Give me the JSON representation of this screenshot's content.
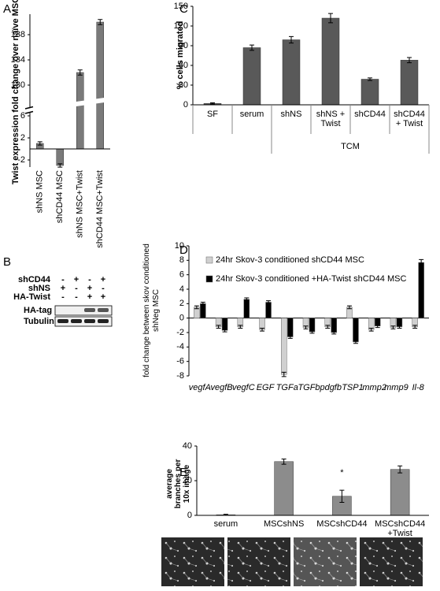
{
  "chart_data": [
    {
      "type": "bar",
      "panel": "A",
      "y_label": "Twist expression fold change over naïve MSC",
      "categories": [
        "shNS MSC",
        "shCD44  MSC",
        "shNS MSC+Twist",
        "shCD44 MSC+Twist"
      ],
      "values": [
        1,
        -3,
        132,
        140
      ],
      "errors": [
        0.3,
        0.3,
        0.4,
        0.4
      ],
      "color": "#7a7a7a",
      "ylim": [
        -3,
        141
      ],
      "axis_break": [
        7,
        128
      ],
      "yticks": [
        -2,
        2,
        6,
        130,
        134,
        138
      ]
    },
    {
      "type": "bar",
      "panel": "C",
      "y_label": "% cells migrated",
      "categories": [
        "SF",
        "serum",
        "shNS",
        "shNS +\nTwist",
        "shCD44",
        "shCD44\n+ Twist"
      ],
      "values": [
        2,
        87,
        99,
        132,
        39,
        68
      ],
      "errors": [
        1,
        4,
        5,
        7,
        2,
        4
      ],
      "color": "#595959",
      "ylim": [
        0,
        150
      ],
      "yticks": [
        0,
        30,
        60,
        90,
        120,
        150
      ],
      "group": {
        "label": "TCM",
        "from": "shNS",
        "to": "shCD44\n+ Twist"
      }
    },
    {
      "type": "grouped_bar",
      "panel": "D",
      "y_label": "fold change between skov conditioned\nshNeg MSC",
      "categories": [
        "vegfA",
        "vegfB",
        "vegfC",
        "EGF",
        "TGFa",
        "TGFb",
        "pdgfb",
        "TSP1",
        "mmp2",
        "mmp9",
        "Il-8"
      ],
      "series": [
        {
          "name": "24hr Skov-3 conditioned shCD44 MSC",
          "color": "#d0d0d0",
          "values": [
            1.5,
            -1.2,
            -1.2,
            -1.6,
            -7.8,
            -1.3,
            -1.2,
            1.5,
            -1.6,
            -1.3,
            -1.2
          ],
          "errors": [
            0.2,
            0.2,
            0.2,
            0.2,
            0.3,
            0.2,
            0.2,
            0.2,
            0.2,
            0.2,
            0.2
          ]
        },
        {
          "name": "24hr Skov-3 conditioned  +HA-Twist shCD44 MSC",
          "color": "#000000",
          "values": [
            2.0,
            -1.7,
            2.6,
            2.2,
            -2.6,
            -1.9,
            -2.0,
            -3.3,
            -1.1,
            -1.2,
            7.7
          ],
          "errors": [
            0.2,
            0.2,
            0.2,
            0.2,
            0.2,
            0.2,
            0.2,
            0.2,
            0.2,
            0.2,
            0.4
          ]
        }
      ],
      "ylim": [
        -8,
        10
      ],
      "yticks": [
        -8,
        -6,
        -4,
        -2,
        0,
        2,
        4,
        6,
        8,
        10
      ]
    },
    {
      "type": "bar",
      "panel": "E",
      "y_label": "average\nbranches per\n10x image",
      "categories": [
        "serum",
        "MSCshNS",
        "MSCshCD44",
        "MSCshCD44\n+Twist"
      ],
      "values": [
        0.3,
        31,
        11,
        26.5
      ],
      "errors": [
        0.3,
        1.5,
        3.5,
        2
      ],
      "color": "#8c8c8c",
      "ylim": [
        0,
        40
      ],
      "yticks": [
        0,
        20,
        40
      ],
      "annotation": "*"
    }
  ],
  "blot": {
    "panel": "B",
    "rows": [
      {
        "label": "shCD44",
        "signs": [
          "-",
          "+",
          "-",
          "+"
        ]
      },
      {
        "label": "shNS",
        "signs": [
          "+",
          "-",
          "+",
          "-"
        ]
      },
      {
        "label": "HA-Twist",
        "signs": [
          "-",
          "-",
          "+",
          "+"
        ]
      }
    ],
    "bands": [
      "HA-tag",
      "Tubulin"
    ]
  }
}
